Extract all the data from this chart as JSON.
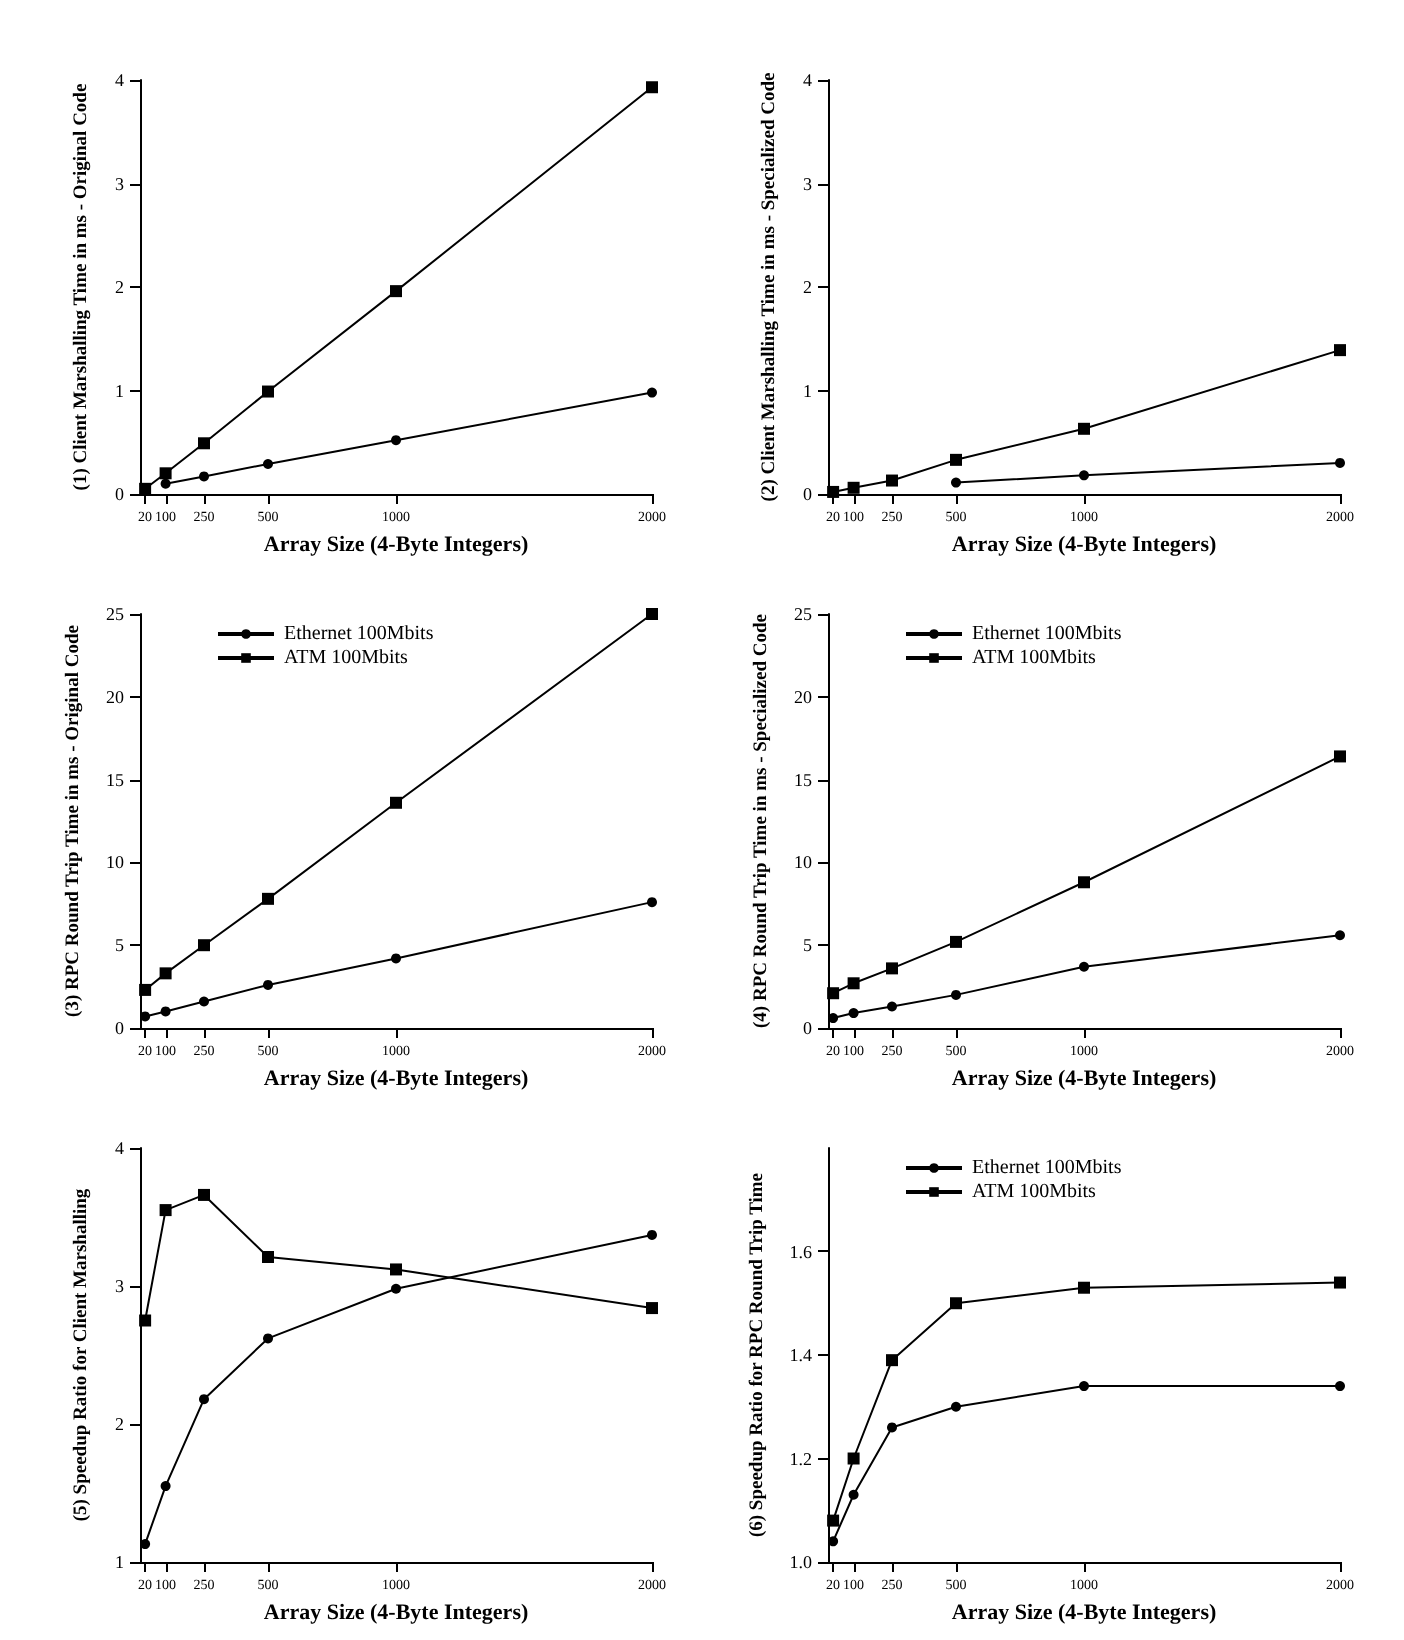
{
  "chart_data": [
    {
      "type": "line",
      "xlabel": "Array Size (4-Byte Integers)",
      "ylabel": "(1) Client Marshalling Time in ms - Original Code",
      "x": [
        20,
        100,
        250,
        500,
        1000,
        2000
      ],
      "xlim": [
        0,
        2000
      ],
      "xticks": [
        20,
        100,
        250,
        500,
        1000,
        2000
      ],
      "ylim": [
        0,
        4
      ],
      "yticks": [
        0,
        1,
        2,
        3,
        4
      ],
      "grid": false,
      "legend": false,
      "series": [
        {
          "color": "#000000",
          "marker": "circle",
          "values": [
            null,
            0.1,
            0.17,
            0.29,
            0.52,
            0.98
          ]
        },
        {
          "color": "#000000",
          "marker": "square",
          "values": [
            0.05,
            0.2,
            0.49,
            0.99,
            1.96,
            3.93
          ]
        }
      ]
    },
    {
      "type": "line",
      "xlabel": "Array Size (4-Byte Integers)",
      "ylabel": "(2) Client Marshalling Time in ms - Specialized Code",
      "x": [
        20,
        100,
        250,
        500,
        1000,
        2000
      ],
      "xlim": [
        0,
        2000
      ],
      "xticks": [
        20,
        100,
        250,
        500,
        1000,
        2000
      ],
      "ylim": [
        0,
        4
      ],
      "yticks": [
        0,
        1,
        2,
        3,
        4
      ],
      "grid": false,
      "legend": false,
      "series": [
        {
          "color": "#000000",
          "marker": "circle",
          "values": [
            null,
            0.06,
            null,
            0.11,
            0.18,
            0.3
          ]
        },
        {
          "color": "#000000",
          "marker": "square",
          "values": [
            0.02,
            0.06,
            0.13,
            0.33,
            0.63,
            1.39
          ]
        }
      ]
    },
    {
      "type": "line",
      "xlabel": "Array Size (4-Byte Integers)",
      "ylabel": "(3) RPC Round Trip Time in ms - Original Code",
      "x": [
        20,
        100,
        250,
        500,
        1000,
        2000
      ],
      "xlim": [
        0,
        2000
      ],
      "xticks": [
        20,
        100,
        250,
        500,
        1000,
        2000
      ],
      "ylim": [
        0,
        25
      ],
      "yticks": [
        0,
        5,
        10,
        15,
        20,
        25
      ],
      "grid": false,
      "legend": "top left",
      "series": [
        {
          "name": "Ethernet 100Mbits",
          "color": "#000000",
          "marker": "circle",
          "values": [
            0.7,
            1.0,
            1.6,
            2.6,
            4.2,
            7.6
          ]
        },
        {
          "name": "ATM 100Mbits",
          "color": "#000000",
          "marker": "square",
          "values": [
            2.3,
            3.3,
            5.0,
            7.8,
            13.6,
            25.0
          ]
        }
      ]
    },
    {
      "type": "line",
      "xlabel": "Array Size (4-Byte Integers)",
      "ylabel": "(4) RPC Round Trip Time in ms - Specialized Code",
      "x": [
        20,
        100,
        250,
        500,
        1000,
        2000
      ],
      "xlim": [
        0,
        2000
      ],
      "xticks": [
        20,
        100,
        250,
        500,
        1000,
        2000
      ],
      "ylim": [
        0,
        25
      ],
      "yticks": [
        0,
        5,
        10,
        15,
        20,
        25
      ],
      "grid": false,
      "legend": "top left",
      "series": [
        {
          "name": "Ethernet 100Mbits",
          "color": "#000000",
          "marker": "circle",
          "values": [
            0.6,
            0.9,
            1.3,
            2.0,
            3.7,
            5.6
          ]
        },
        {
          "name": "ATM 100Mbits",
          "color": "#000000",
          "marker": "square",
          "values": [
            2.1,
            2.7,
            3.6,
            5.2,
            8.8,
            16.4
          ]
        }
      ]
    },
    {
      "type": "line",
      "xlabel": "Array Size (4-Byte Integers)",
      "ylabel": "(5) Speedup Ratio for Client Marshalling",
      "x": [
        20,
        100,
        250,
        500,
        1000,
        2000
      ],
      "xlim": [
        0,
        2000
      ],
      "xticks": [
        20,
        100,
        250,
        500,
        1000,
        2000
      ],
      "ylim": [
        1,
        4
      ],
      "yticks": [
        1,
        2,
        3,
        4
      ],
      "grid": false,
      "legend": false,
      "series": [
        {
          "color": "#000000",
          "marker": "circle",
          "values": [
            1.13,
            1.55,
            2.18,
            2.62,
            2.98,
            3.37
          ]
        },
        {
          "color": "#000000",
          "marker": "square",
          "values": [
            2.75,
            3.55,
            3.66,
            3.21,
            3.12,
            2.84
          ]
        }
      ]
    },
    {
      "type": "line",
      "xlabel": "Array Size (4-Byte Integers)",
      "ylabel": "(6) Speedup Ratio for RPC Round Trip Time",
      "x": [
        20,
        100,
        250,
        500,
        1000,
        2000
      ],
      "xlim": [
        0,
        2000
      ],
      "xticks": [
        20,
        100,
        250,
        500,
        1000,
        2000
      ],
      "ylim": [
        1.0,
        1.8
      ],
      "yticks": [
        {
          "value": 1.0,
          "label": "1.0"
        },
        {
          "value": 1.2,
          "label": "1.2"
        },
        {
          "value": 1.4,
          "label": "1.4"
        },
        {
          "value": 1.6,
          "label": "1.6"
        }
      ],
      "grid": false,
      "legend": "top left",
      "series": [
        {
          "name": "Ethernet 100Mbits",
          "color": "#000000",
          "marker": "circle",
          "values": [
            1.04,
            1.13,
            1.26,
            1.3,
            1.34,
            1.34
          ]
        },
        {
          "name": "ATM 100Mbits",
          "color": "#000000",
          "marker": "square",
          "values": [
            1.08,
            1.2,
            1.39,
            1.5,
            1.53,
            1.54
          ]
        }
      ]
    }
  ]
}
